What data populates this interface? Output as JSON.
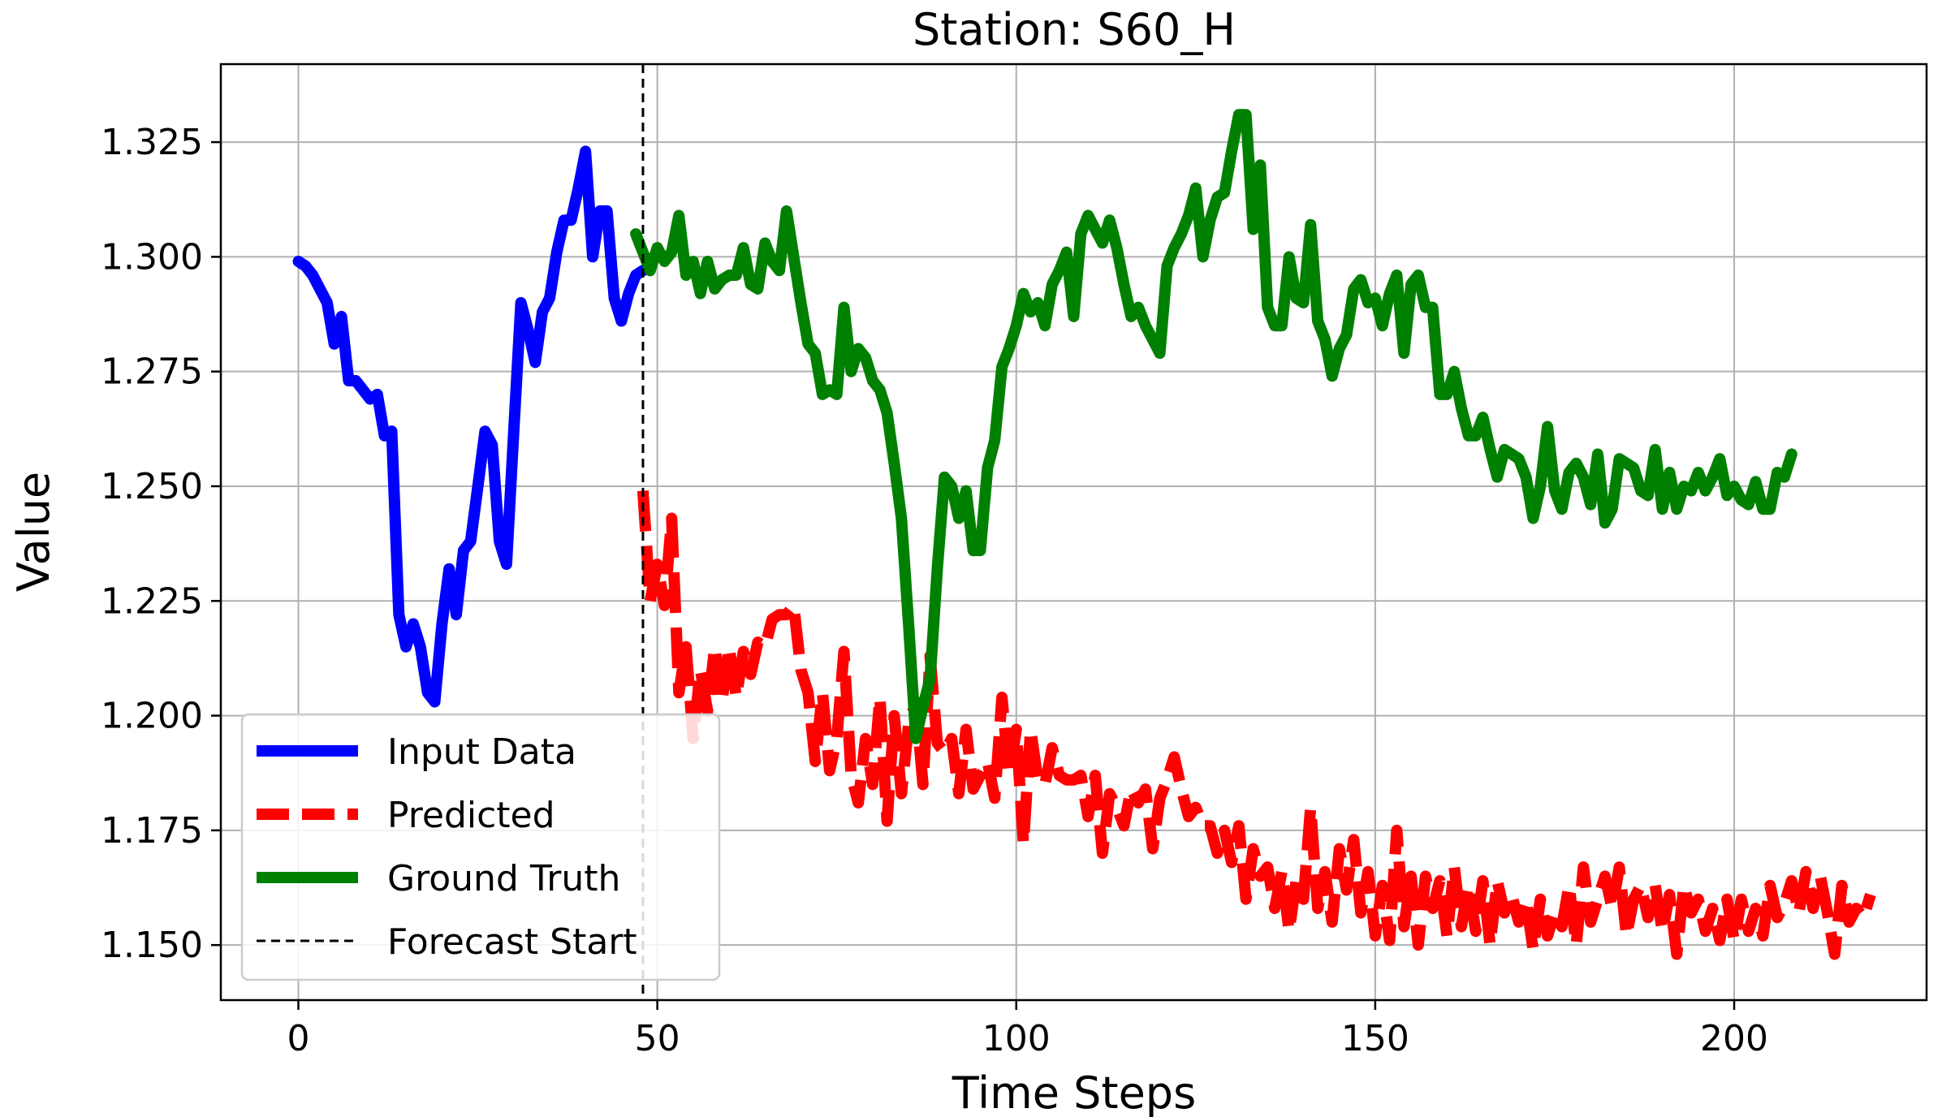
{
  "chart_data": {
    "type": "line",
    "title": "Station: S60_H",
    "xlabel": "Time Steps",
    "ylabel": "Value",
    "xlim": [
      -10.8,
      226.8
    ],
    "ylim": [
      1.138,
      1.342
    ],
    "xticks": [
      0,
      50,
      100,
      150,
      200
    ],
    "xtick_labels": [
      "0",
      "50",
      "100",
      "150",
      "200"
    ],
    "yticks": [
      1.15,
      1.175,
      1.2,
      1.225,
      1.25,
      1.275,
      1.3,
      1.325
    ],
    "ytick_labels": [
      "1.150",
      "1.175",
      "1.200",
      "1.225",
      "1.250",
      "1.275",
      "1.300",
      "1.325"
    ],
    "grid": true,
    "legend_position": "lower-left",
    "forecast_start": 48,
    "series": [
      {
        "name": "Input Data",
        "color": "#0000ff",
        "style": "solid",
        "x_start": 0,
        "values": [
          1.299,
          1.298,
          1.296,
          1.293,
          1.29,
          1.281,
          1.287,
          1.273,
          1.273,
          1.271,
          1.269,
          1.27,
          1.261,
          1.262,
          1.222,
          1.215,
          1.22,
          1.215,
          1.205,
          1.203,
          1.22,
          1.232,
          1.222,
          1.236,
          1.238,
          1.25,
          1.262,
          1.259,
          1.238,
          1.233,
          1.262,
          1.29,
          1.284,
          1.277,
          1.288,
          1.291,
          1.301,
          1.308,
          1.308,
          1.315,
          1.323,
          1.3,
          1.31,
          1.31,
          1.291,
          1.286,
          1.292,
          1.296,
          1.297
        ]
      },
      {
        "name": "Predicted",
        "color": "#ff0000",
        "style": "dashed",
        "x_start": 48,
        "values": [
          1.249,
          1.225,
          1.233,
          1.224,
          1.243,
          1.205,
          1.215,
          1.195,
          1.21,
          1.201,
          1.215,
          1.203,
          1.215,
          1.204,
          1.214,
          1.209,
          1.216,
          1.215,
          1.221,
          1.222,
          1.222,
          1.224,
          1.21,
          1.205,
          1.19,
          1.205,
          1.188,
          1.195,
          1.214,
          1.187,
          1.181,
          1.195,
          1.185,
          1.204,
          1.177,
          1.2,
          1.183,
          1.198,
          1.203,
          1.185,
          1.213,
          1.194,
          1.192,
          1.195,
          1.183,
          1.197,
          1.184,
          1.187,
          1.19,
          1.182,
          1.204,
          1.187,
          1.197,
          1.172,
          1.197,
          1.186,
          1.185,
          1.193,
          1.187,
          1.186,
          1.186,
          1.187,
          1.178,
          1.187,
          1.17,
          1.183,
          1.18,
          1.176,
          1.184,
          1.181,
          1.184,
          1.171,
          1.182,
          1.186,
          1.191,
          1.184,
          1.178,
          1.18,
          1.176,
          1.176,
          1.17,
          1.175,
          1.168,
          1.176,
          1.16,
          1.171,
          1.165,
          1.167,
          1.158,
          1.166,
          1.153,
          1.164,
          1.16,
          1.18,
          1.158,
          1.166,
          1.155,
          1.171,
          1.162,
          1.173,
          1.157,
          1.166,
          1.152,
          1.163,
          1.151,
          1.175,
          1.154,
          1.165,
          1.15,
          1.165,
          1.158,
          1.164,
          1.152,
          1.167,
          1.154,
          1.163,
          1.153,
          1.164,
          1.15,
          1.164,
          1.157,
          1.161,
          1.155,
          1.16,
          1.149,
          1.16,
          1.152,
          1.157,
          1.154,
          1.163,
          1.15,
          1.167,
          1.155,
          1.16,
          1.165,
          1.158,
          1.167,
          1.152,
          1.16,
          1.163,
          1.156,
          1.163,
          1.153,
          1.161,
          1.148,
          1.163,
          1.157,
          1.16,
          1.153,
          1.158,
          1.151,
          1.16,
          1.151,
          1.16,
          1.153,
          1.158,
          1.152,
          1.163,
          1.156,
          1.159,
          1.164,
          1.157,
          1.166,
          1.158,
          1.165,
          1.157,
          1.148,
          1.163,
          1.155,
          1.158,
          1.156,
          1.161
        ]
      },
      {
        "name": "Ground Truth",
        "color": "#008000",
        "style": "solid",
        "x_start": 47,
        "values": [
          1.305,
          1.301,
          1.297,
          1.302,
          1.299,
          1.301,
          1.309,
          1.296,
          1.299,
          1.292,
          1.299,
          1.293,
          1.295,
          1.296,
          1.296,
          1.302,
          1.294,
          1.293,
          1.303,
          1.299,
          1.297,
          1.31,
          1.3,
          1.29,
          1.281,
          1.279,
          1.27,
          1.271,
          1.27,
          1.289,
          1.275,
          1.28,
          1.278,
          1.273,
          1.271,
          1.266,
          1.255,
          1.243,
          1.22,
          1.195,
          1.202,
          1.208,
          1.232,
          1.252,
          1.25,
          1.243,
          1.249,
          1.236,
          1.236,
          1.254,
          1.26,
          1.276,
          1.28,
          1.285,
          1.292,
          1.288,
          1.29,
          1.285,
          1.294,
          1.297,
          1.301,
          1.287,
          1.305,
          1.309,
          1.306,
          1.303,
          1.308,
          1.302,
          1.294,
          1.287,
          1.289,
          1.285,
          1.282,
          1.279,
          1.298,
          1.302,
          1.305,
          1.309,
          1.315,
          1.3,
          1.308,
          1.313,
          1.314,
          1.323,
          1.331,
          1.331,
          1.306,
          1.32,
          1.289,
          1.285,
          1.285,
          1.3,
          1.291,
          1.29,
          1.307,
          1.286,
          1.282,
          1.274,
          1.28,
          1.283,
          1.293,
          1.295,
          1.29,
          1.291,
          1.285,
          1.292,
          1.296,
          1.279,
          1.294,
          1.296,
          1.289,
          1.289,
          1.27,
          1.27,
          1.275,
          1.267,
          1.261,
          1.261,
          1.265,
          1.258,
          1.252,
          1.258,
          1.257,
          1.256,
          1.252,
          1.243,
          1.25,
          1.263,
          1.249,
          1.245,
          1.253,
          1.255,
          1.252,
          1.246,
          1.257,
          1.242,
          1.245,
          1.256,
          1.255,
          1.254,
          1.249,
          1.248,
          1.258,
          1.245,
          1.253,
          1.245,
          1.25,
          1.249,
          1.253,
          1.249,
          1.252,
          1.256,
          1.248,
          1.25,
          1.247,
          1.246,
          1.251,
          1.245,
          1.245,
          1.253,
          1.252,
          1.257
        ]
      }
    ],
    "legend": [
      {
        "label": "Input Data",
        "color": "#0000ff",
        "style": "solid"
      },
      {
        "label": "Predicted",
        "color": "#ff0000",
        "style": "dashed"
      },
      {
        "label": "Ground Truth",
        "color": "#008000",
        "style": "solid"
      },
      {
        "label": "Forecast Start",
        "color": "#000000",
        "style": "dashed-thin"
      }
    ]
  }
}
